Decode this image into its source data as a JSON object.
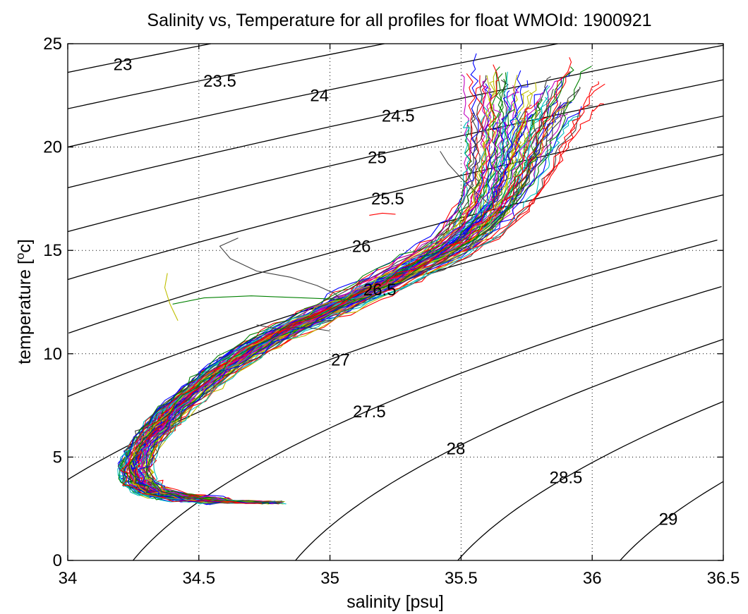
{
  "chart_data": {
    "type": "line",
    "title": "Salinity vs, Temperature for all profiles for float WMOId: 1900921",
    "xlabel": "salinity [psu]",
    "ylabel": "temperature [",
    "ylabel_sup": "o",
    "ylabel_end": "c]",
    "xlim": [
      34,
      36.5
    ],
    "ylim": [
      0,
      25
    ],
    "xticks": [
      34,
      34.5,
      35,
      35.5,
      36,
      36.5
    ],
    "xtick_labels": [
      "34",
      "34.5",
      "35",
      "35.5",
      "36",
      "36.5"
    ],
    "yticks": [
      0,
      5,
      10,
      15,
      20,
      25
    ],
    "ytick_labels": [
      "0",
      "5",
      "10",
      "15",
      "20",
      "25"
    ],
    "grid": true,
    "isopycnals": {
      "levels": [
        23,
        23.5,
        24,
        24.5,
        25,
        25.5,
        26,
        26.5,
        27,
        27.5,
        28,
        28.5,
        29
      ],
      "labels": [
        "23",
        "23.5",
        "24",
        "24.5",
        "25",
        "25.5",
        "26",
        "26.5",
        "27",
        "27.5",
        "28",
        "28.5",
        "29"
      ],
      "label_positions": [
        [
          34.21,
          24.0
        ],
        [
          34.58,
          23.2
        ],
        [
          34.96,
          22.5
        ],
        [
          35.26,
          21.5
        ],
        [
          35.18,
          19.5
        ],
        [
          35.22,
          17.5
        ],
        [
          35.12,
          15.2
        ],
        [
          35.19,
          13.1
        ],
        [
          35.04,
          9.7
        ],
        [
          35.15,
          7.2
        ],
        [
          35.48,
          5.4
        ],
        [
          35.9,
          4.0
        ],
        [
          36.29,
          2.0
        ]
      ]
    },
    "profile_colors": [
      "#0000ff",
      "#008000",
      "#ff0000",
      "#00bfbf",
      "#bf00bf",
      "#bfbf00",
      "#404040"
    ],
    "profile_count": 80,
    "mean_profile": {
      "salinity": [
        34.78,
        34.6,
        34.45,
        34.33,
        34.27,
        34.26,
        34.28,
        34.33,
        34.4,
        34.5,
        34.6,
        34.72,
        34.85,
        35.0,
        35.15,
        35.3,
        35.45,
        35.55,
        35.62,
        35.66,
        35.69,
        35.71,
        35.73,
        35.75,
        35.77
      ],
      "temperature": [
        2.8,
        2.85,
        3.0,
        3.3,
        3.8,
        4.5,
        5.3,
        6.2,
        7.2,
        8.3,
        9.3,
        10.3,
        11.2,
        12.1,
        13.0,
        14.0,
        15.0,
        16.0,
        17.0,
        18.0,
        19.0,
        20.0,
        21.0,
        22.0,
        22.6
      ]
    },
    "secondary_traces": [
      {
        "salinity": [
          34.65,
          34.58,
          34.62,
          34.72,
          34.85,
          34.95,
          35.02,
          35.05
        ],
        "temperature": [
          15.6,
          15.2,
          14.6,
          14.0,
          13.7,
          13.3,
          12.9,
          12.5
        ],
        "color": "#404040"
      },
      {
        "salinity": [
          34.4,
          34.52,
          34.7,
          34.9,
          35.1
        ],
        "temperature": [
          12.4,
          12.7,
          12.8,
          12.7,
          12.6
        ],
        "color": "#008000"
      },
      {
        "salinity": [
          35.42,
          35.45,
          35.5,
          35.55,
          35.6
        ],
        "temperature": [
          19.8,
          19.2,
          18.5,
          17.9,
          17.3
        ],
        "color": "#404040"
      },
      {
        "salinity": [
          35.15,
          35.2,
          35.25
        ],
        "temperature": [
          16.7,
          16.8,
          16.75
        ],
        "color": "#ff0000"
      },
      {
        "salinity": [
          34.38,
          34.37,
          34.39,
          34.42
        ],
        "temperature": [
          13.9,
          13.2,
          12.4,
          11.6
        ],
        "color": "#bfbf00"
      },
      {
        "salinity": [
          34.72,
          34.8,
          34.9,
          35.0
        ],
        "temperature": [
          11.4,
          11.2,
          11.3,
          11.1
        ],
        "color": "#404040"
      }
    ]
  }
}
